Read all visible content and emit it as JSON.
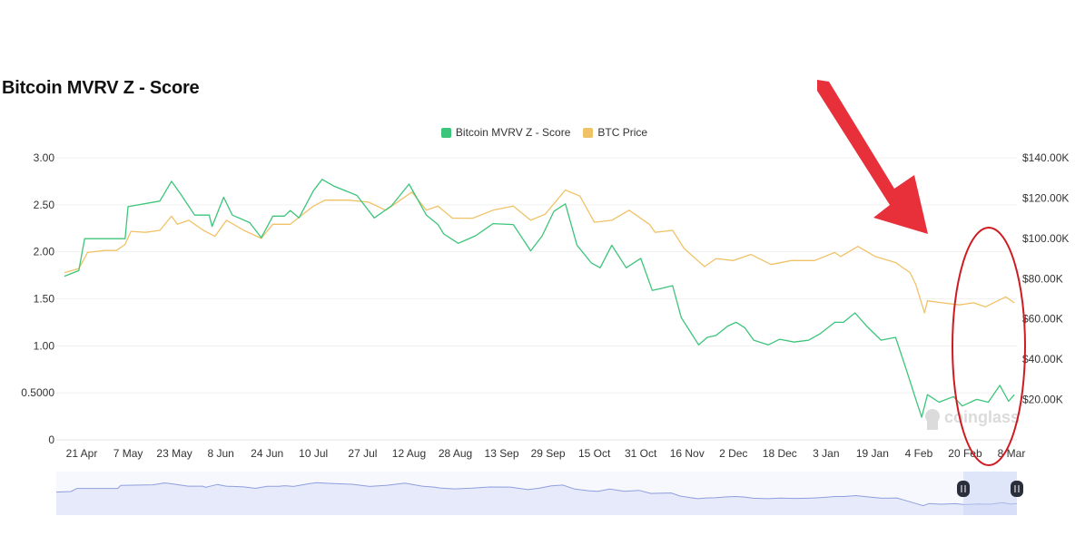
{
  "title": "Bitcoin MVRV Z - Score",
  "watermark": "coinglass",
  "colors": {
    "zscore": "#3cc57a",
    "price": "#f0c267",
    "annotation": "#e8303a",
    "navigator": "#8f9fde"
  },
  "annotations": {
    "arrow_icon": "red-arrow-pointing-down",
    "ellipse": "red-ellipse-around-recent-data"
  },
  "chart_data": {
    "type": "line",
    "title": "Bitcoin MVRV Z - Score",
    "legend_position": "top-center",
    "grid": true,
    "x_ticks": [
      "21 Apr",
      "7 May",
      "23 May",
      "8 Jun",
      "24 Jun",
      "10 Jul",
      "27 Jul",
      "12 Aug",
      "28 Aug",
      "13 Sep",
      "29 Sep",
      "15 Oct",
      "31 Oct",
      "16 Nov",
      "2 Dec",
      "18 Dec",
      "3 Jan",
      "19 Jan",
      "4 Feb",
      "20 Feb",
      "8 Mar"
    ],
    "y_left": {
      "ticks": [
        "0",
        "0.5000",
        "1.00",
        "1.50",
        "2.00",
        "2.50",
        "3.00"
      ],
      "ylim": [
        0,
        3
      ]
    },
    "y_right": {
      "ticks": [
        "$20.00K",
        "$40.00K",
        "$60.00K",
        "$80.00K",
        "$100.00K",
        "$120.00K",
        "$140.00K"
      ],
      "ylim": [
        0,
        140000
      ]
    },
    "series": [
      {
        "name": "Bitcoin MVRV Z - Score",
        "axis": "left",
        "x": [
          "15 Apr",
          "20 Apr",
          "22 Apr",
          "6 May",
          "7 May",
          "18 May",
          "22 May",
          "25 May",
          "30 May",
          "4 Jun",
          "5 Jun",
          "9 Jun",
          "12 Jun",
          "18 Jun",
          "22 Jun",
          "26 Jun",
          "30 Jun",
          "2 Jul",
          "5 Jul",
          "10 Jul",
          "13 Jul",
          "17 Jul",
          "25 Jul",
          "31 Jul",
          "6 Aug",
          "12 Aug",
          "18 Aug",
          "22 Aug",
          "24 Aug",
          "29 Aug",
          "4 Sep",
          "10 Sep",
          "17 Sep",
          "23 Sep",
          "27 Sep",
          "1 Oct",
          "5 Oct",
          "9 Oct",
          "14 Oct",
          "17 Oct",
          "21 Oct",
          "26 Oct",
          "31 Oct",
          "4 Nov",
          "7 Nov",
          "11 Nov",
          "14 Nov",
          "20 Nov",
          "23 Nov",
          "26 Nov",
          "30 Nov",
          "3 Dec",
          "6 Dec",
          "9 Dec",
          "14 Dec",
          "18 Dec",
          "23 Dec",
          "28 Dec",
          "1 Jan",
          "6 Jan",
          "9 Jan",
          "13 Jan",
          "17 Jan",
          "22 Jan",
          "27 Jan",
          "31 Jan",
          "3 Feb",
          "5 Feb",
          "7 Feb",
          "11 Feb",
          "16 Feb",
          "19 Feb",
          "24 Feb",
          "28 Feb",
          "4 Mar",
          "7 Mar",
          "9 Mar"
        ],
        "y": [
          1.74,
          1.8,
          2.14,
          2.14,
          2.48,
          2.54,
          2.75,
          2.62,
          2.39,
          2.39,
          2.27,
          2.58,
          2.39,
          2.31,
          2.15,
          2.38,
          2.38,
          2.44,
          2.36,
          2.65,
          2.77,
          2.7,
          2.6,
          2.36,
          2.49,
          2.72,
          2.39,
          2.29,
          2.19,
          2.09,
          2.17,
          2.3,
          2.29,
          2.01,
          2.17,
          2.43,
          2.51,
          2.07,
          1.88,
          1.83,
          2.07,
          1.83,
          1.93,
          1.59,
          1.61,
          1.64,
          1.3,
          1.01,
          1.09,
          1.11,
          1.21,
          1.25,
          1.19,
          1.06,
          1.01,
          1.07,
          1.04,
          1.06,
          1.13,
          1.25,
          1.25,
          1.35,
          1.21,
          1.06,
          1.09,
          0.72,
          0.43,
          0.24,
          0.48,
          0.4,
          0.46,
          0.36,
          0.43,
          0.4,
          0.58,
          0.41,
          0.48
        ]
      },
      {
        "name": "BTC Price",
        "axis": "right",
        "x": [
          "15 Apr",
          "20 Apr",
          "23 Apr",
          "29 Apr",
          "3 May",
          "6 May",
          "8 May",
          "13 May",
          "18 May",
          "22 May",
          "24 May",
          "28 May",
          "2 Jun",
          "6 Jun",
          "10 Jun",
          "16 Jun",
          "22 Jun",
          "26 Jun",
          "2 Jul",
          "10 Jul",
          "14 Jul",
          "22 Jul",
          "29 Jul",
          "4 Aug",
          "13 Aug",
          "18 Aug",
          "22 Aug",
          "27 Aug",
          "3 Sep",
          "10 Sep",
          "17 Sep",
          "23 Sep",
          "28 Sep",
          "5 Oct",
          "10 Oct",
          "15 Oct",
          "21 Oct",
          "27 Oct",
          "3 Nov",
          "5 Nov",
          "11 Nov",
          "15 Nov",
          "22 Nov",
          "26 Nov",
          "2 Dec",
          "8 Dec",
          "15 Dec",
          "22 Dec",
          "30 Dec",
          "6 Jan",
          "8 Jan",
          "14 Jan",
          "20 Jan",
          "27 Jan",
          "1 Feb",
          "3 Feb",
          "6 Feb",
          "7 Feb",
          "12 Feb",
          "18 Feb",
          "23 Feb",
          "27 Feb",
          "6 Mar",
          "9 Mar"
        ],
        "y": [
          83000,
          85000,
          93000,
          94000,
          94000,
          97000,
          103500,
          103000,
          104000,
          111000,
          107000,
          109000,
          104000,
          101000,
          109000,
          104000,
          100000,
          107000,
          107000,
          116000,
          119000,
          119000,
          118000,
          114000,
          123000,
          114000,
          116000,
          110000,
          110000,
          114000,
          116000,
          109000,
          112000,
          124000,
          121000,
          108000,
          109000,
          114000,
          107000,
          103000,
          104000,
          95000,
          86000,
          90000,
          89000,
          92000,
          87000,
          89000,
          89000,
          93000,
          91000,
          96000,
          91000,
          88000,
          83000,
          77000,
          63000,
          69000,
          68000,
          67000,
          68000,
          66000,
          71000,
          68000
        ]
      }
    ]
  }
}
